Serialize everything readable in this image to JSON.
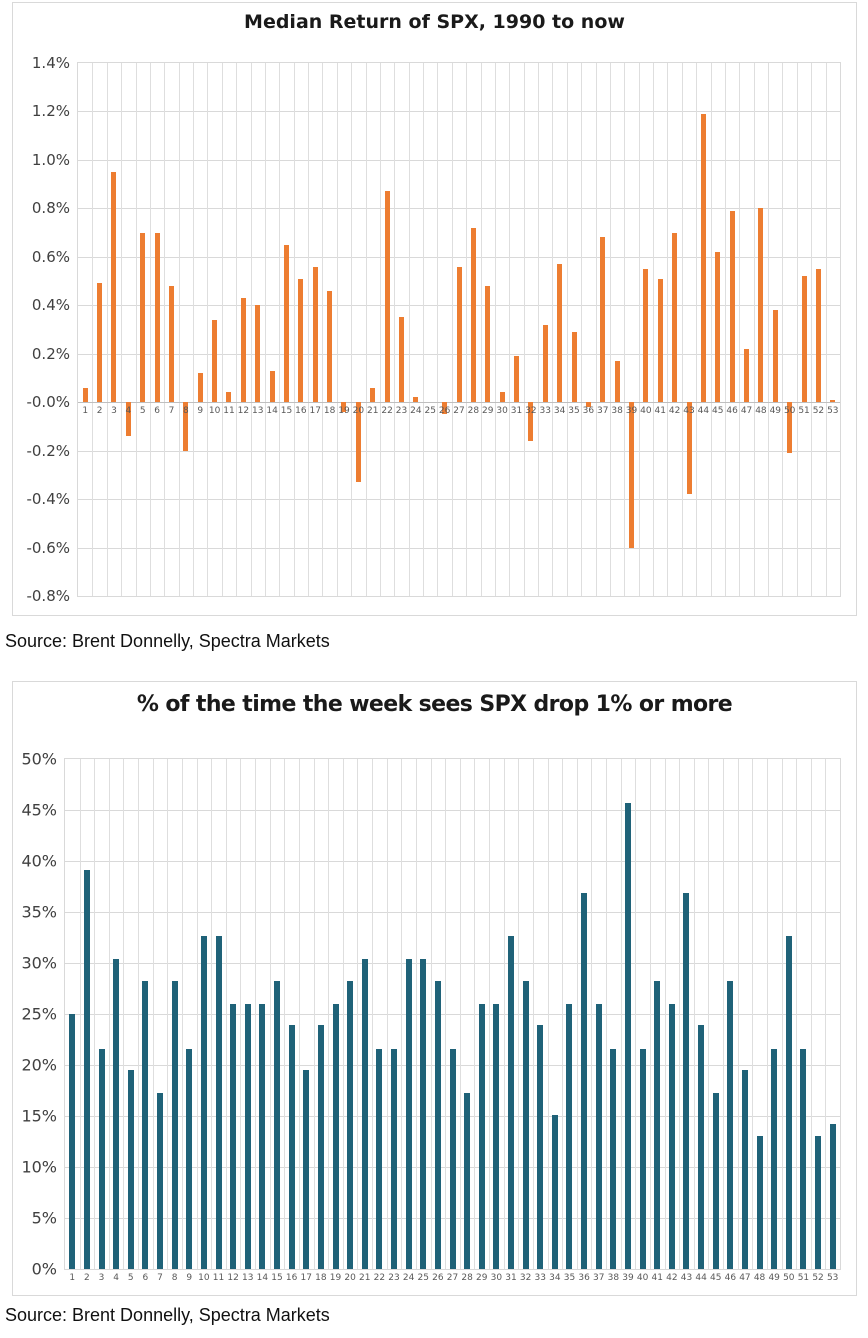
{
  "captions": {
    "source_1": "Source: Brent Donnelly, Spectra Markets",
    "source_2": "Source: Brent Donnelly, Spectra Markets"
  },
  "chart_data": [
    {
      "type": "bar",
      "title": "Median Return of SPX, 1990 to now",
      "xlabel": "",
      "ylabel": "",
      "unit": "percent",
      "bar_color": "#ED7D31",
      "grid": true,
      "legend": "none",
      "ylim": [
        -0.8,
        1.4
      ],
      "ytick_step": 0.2,
      "ytick_decimals": 1,
      "categories": [
        1,
        2,
        3,
        4,
        5,
        6,
        7,
        8,
        9,
        10,
        11,
        12,
        13,
        14,
        15,
        16,
        17,
        18,
        19,
        20,
        21,
        22,
        23,
        24,
        25,
        26,
        27,
        28,
        29,
        30,
        31,
        32,
        33,
        34,
        35,
        36,
        37,
        38,
        39,
        40,
        41,
        42,
        43,
        44,
        45,
        46,
        47,
        48,
        49,
        50,
        51,
        52,
        53
      ],
      "values": [
        0.06,
        0.49,
        0.95,
        -0.14,
        0.7,
        0.7,
        0.48,
        -0.2,
        0.12,
        0.34,
        0.04,
        0.43,
        0.4,
        0.13,
        0.65,
        0.51,
        0.56,
        0.46,
        -0.04,
        -0.33,
        0.06,
        0.87,
        0.35,
        0.02,
        0.0,
        -0.05,
        0.56,
        0.72,
        0.48,
        0.04,
        0.19,
        -0.16,
        0.32,
        0.57,
        0.29,
        -0.02,
        0.68,
        0.17,
        -0.6,
        0.55,
        0.51,
        0.7,
        -0.38,
        1.19,
        0.62,
        0.79,
        0.22,
        0.8,
        0.38,
        -0.21,
        0.52,
        0.55,
        0.01
      ]
    },
    {
      "type": "bar",
      "title": "% of the time the week sees SPX drop 1% or more",
      "xlabel": "",
      "ylabel": "",
      "unit": "percent",
      "bar_color": "#1F6278",
      "grid": true,
      "legend": "none",
      "ylim": [
        0,
        50
      ],
      "ytick_step": 5,
      "ytick_decimals": 0,
      "categories": [
        1,
        2,
        3,
        4,
        5,
        6,
        7,
        8,
        9,
        10,
        11,
        12,
        13,
        14,
        15,
        16,
        17,
        18,
        19,
        20,
        21,
        22,
        23,
        24,
        25,
        26,
        27,
        28,
        29,
        30,
        31,
        32,
        33,
        34,
        35,
        36,
        37,
        38,
        39,
        40,
        41,
        42,
        43,
        44,
        45,
        46,
        47,
        48,
        49,
        50,
        51,
        52,
        53
      ],
      "values": [
        25.0,
        39.1,
        21.6,
        30.4,
        19.5,
        28.2,
        17.3,
        28.2,
        21.6,
        32.6,
        32.6,
        26.0,
        26.0,
        26.0,
        28.2,
        23.9,
        19.5,
        23.9,
        26.0,
        28.2,
        30.4,
        21.6,
        21.6,
        30.4,
        30.4,
        28.2,
        21.6,
        17.3,
        26.0,
        26.0,
        32.6,
        28.2,
        23.9,
        15.1,
        26.0,
        36.9,
        26.0,
        21.6,
        45.7,
        21.6,
        28.2,
        26.0,
        36.9,
        23.9,
        17.3,
        28.2,
        19.5,
        13.0,
        21.6,
        32.6,
        21.6,
        13.0,
        14.2
      ]
    }
  ]
}
